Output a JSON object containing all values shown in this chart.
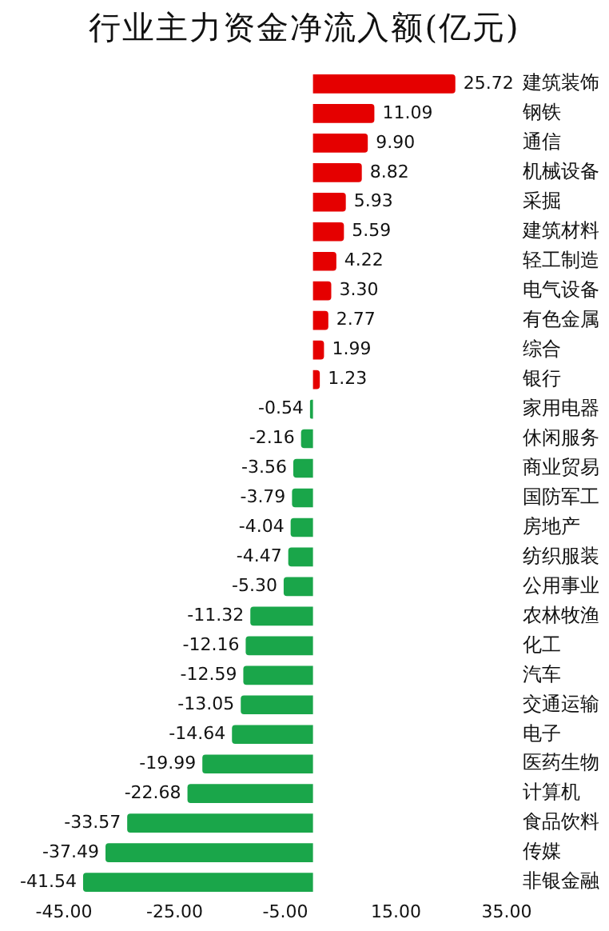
{
  "chart_data": {
    "type": "bar",
    "orientation": "horizontal",
    "title": "行业主力资金净流入额(亿元)",
    "categories": [
      "建筑装饰",
      "钢铁",
      "通信",
      "机械设备",
      "采掘",
      "建筑材料",
      "轻工制造",
      "电气设备",
      "有色金属",
      "综合",
      "银行",
      "家用电器",
      "休闲服务",
      "商业贸易",
      "国防军工",
      "房地产",
      "纺织服装",
      "公用事业",
      "农林牧渔",
      "化工",
      "汽车",
      "交通运输",
      "电子",
      "医药生物",
      "计算机",
      "食品饮料",
      "传媒",
      "非银金融"
    ],
    "values": [
      25.72,
      11.09,
      9.9,
      8.82,
      5.93,
      5.59,
      4.22,
      3.3,
      2.77,
      1.99,
      1.23,
      -0.54,
      -2.16,
      -3.56,
      -3.79,
      -4.04,
      -4.47,
      -5.3,
      -11.32,
      -12.16,
      -12.59,
      -13.05,
      -14.64,
      -19.99,
      -22.68,
      -33.57,
      -37.49,
      -41.54
    ],
    "value_labels": [
      "25.72",
      "11.09",
      "9.90",
      "8.82",
      "5.93",
      "5.59",
      "4.22",
      "3.30",
      "2.77",
      "1.99",
      "1.23",
      "-0.54",
      "-2.16",
      "-3.56",
      "-3.79",
      "-4.04",
      "-4.47",
      "-5.30",
      "-11.32",
      "-12.16",
      "-12.59",
      "-13.05",
      "-14.64",
      "-19.99",
      "-22.68",
      "-33.57",
      "-37.49",
      "-41.54"
    ],
    "colors": [
      "#e50000",
      "#e50000",
      "#e50000",
      "#e50000",
      "#e50000",
      "#e50000",
      "#e50000",
      "#e50000",
      "#e50000",
      "#e50000",
      "#e50000",
      "#1aa64a",
      "#1aa64a",
      "#1aa64a",
      "#1aa64a",
      "#1aa64a",
      "#1aa64a",
      "#1aa64a",
      "#1aa64a",
      "#1aa64a",
      "#1aa64a",
      "#1aa64a",
      "#1aa64a",
      "#1aa64a",
      "#1aa64a",
      "#1aa64a",
      "#1aa64a",
      "#1aa64a"
    ],
    "xlim": [
      -45,
      35
    ],
    "xticks": [
      {
        "value": -45,
        "label": "-45.00"
      },
      {
        "value": -25,
        "label": "-25.00"
      },
      {
        "value": -5,
        "label": "-5.00"
      },
      {
        "value": 15,
        "label": "15.00"
      },
      {
        "value": 35,
        "label": "35.00"
      }
    ],
    "grid": false,
    "legend": false
  }
}
